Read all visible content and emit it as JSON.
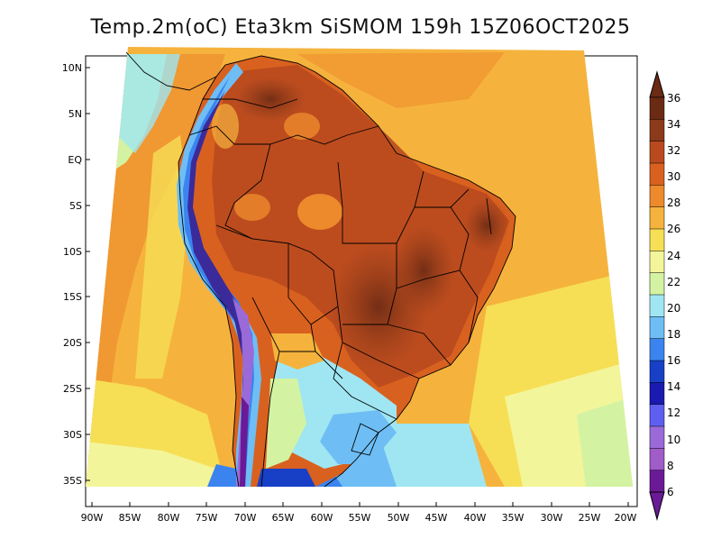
{
  "title": "Temp.2m(oC) Eta3km SiSMOM 159h 15Z06OCT2025",
  "map": {
    "variable": "Temp.2m",
    "units": "oC",
    "model": "Eta3km SiSMOM",
    "forecast_hour": "159h",
    "valid_time": "15Z06OCT2025",
    "lat_range": [
      -38,
      11
    ],
    "lon_range": [
      -91,
      -20
    ],
    "lat_labels": [
      "10N",
      "5N",
      "EQ",
      "5S",
      "10S",
      "15S",
      "20S",
      "25S",
      "30S",
      "35S"
    ],
    "lon_labels": [
      "90W",
      "85W",
      "80W",
      "75W",
      "70W",
      "65W",
      "60W",
      "55W",
      "50W",
      "45W",
      "40W",
      "35W",
      "30W",
      "25W",
      "20W"
    ]
  },
  "colorbar": {
    "labels": [
      "36",
      "34",
      "32",
      "30",
      "28",
      "26",
      "24",
      "22",
      "20",
      "18",
      "16",
      "14",
      "12",
      "10",
      "8",
      "6"
    ],
    "colors": [
      "#6b2a14",
      "#8b3a1a",
      "#b84a1e",
      "#d9611f",
      "#ec8a2c",
      "#f5b33d",
      "#f6df55",
      "#f3f59a",
      "#d3f3a2",
      "#9fe6f2",
      "#6ebef5",
      "#3b84ef",
      "#1740c6",
      "#1a1ab0",
      "#5e5ef0",
      "#9a6ad8",
      "#a05cc8",
      "#6a1a96"
    ]
  },
  "colors": {
    "ocean_mid": "#f5b33d",
    "ocean_warm": "#ec8a2c",
    "ocean_cool": "#f3f59a",
    "land_hot": "#b84a1e",
    "andes_cold": "#3b2a9a"
  }
}
